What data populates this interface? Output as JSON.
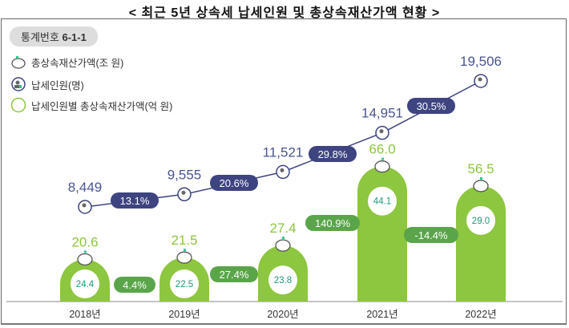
{
  "title": "< 최근 5년 상속세 납세인원 및 총상속재산가액 현황 >",
  "stat_badge": {
    "label": "통계번호",
    "number": "6-1-1"
  },
  "legend": [
    {
      "icon": "piggy-bank-icon",
      "label": "총상속재산가액(조 원)"
    },
    {
      "icon": "person-circle-icon",
      "label": "납세인원(명)"
    },
    {
      "icon": "green-circle-icon",
      "label": "납세인원별 총상속재산가액(억 원)"
    }
  ],
  "colors": {
    "bar": "#8dc63f",
    "bar_label": "#8dc63f",
    "inner_text": "#1a9a7a",
    "line": "#3d4480",
    "count_label": "#4a5590",
    "bar_pill": "#5aa54a"
  },
  "chart_data": {
    "type": "bar+line",
    "categories": [
      "2018년",
      "2019년",
      "2020년",
      "2021년",
      "2022년"
    ],
    "series": [
      {
        "name": "총상속재산가액(조 원)",
        "type": "bar",
        "values": [
          20.6,
          21.5,
          27.4,
          66.0,
          56.5
        ],
        "labels": [
          "20.6",
          "21.5",
          "27.4",
          "66.0",
          "56.5"
        ]
      },
      {
        "name": "납세인원(명)",
        "type": "line",
        "values": [
          8449,
          9555,
          11521,
          14951,
          19506
        ],
        "labels": [
          "8,449",
          "9,555",
          "11,521",
          "14,951",
          "19,506"
        ]
      },
      {
        "name": "납세인원별 총상속재산가액(억 원)",
        "type": "circle-label",
        "values": [
          24.4,
          22.5,
          23.8,
          44.1,
          29.0
        ],
        "labels": [
          "24.4",
          "22.5",
          "23.8",
          "44.1",
          "29.0"
        ]
      }
    ],
    "line_growth": [
      "13.1%",
      "20.6%",
      "29.8%",
      "30.5%"
    ],
    "bar_growth": [
      "4.4%",
      "27.4%",
      "140.9%",
      "-14.4%"
    ]
  }
}
